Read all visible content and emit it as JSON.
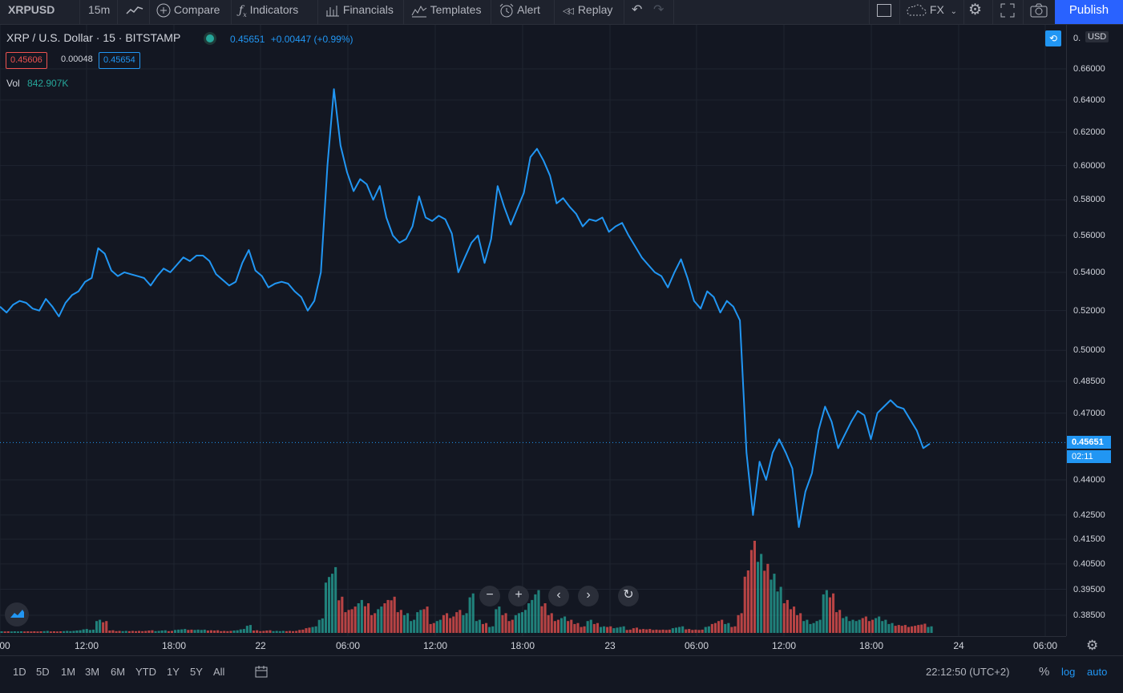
{
  "toolbar": {
    "symbol": "XRPUSD",
    "interval": "15m",
    "compare": "Compare",
    "indicators": "Indicators",
    "financials": "Financials",
    "templates": "Templates",
    "alert": "Alert",
    "replay": "Replay",
    "fx": "FX",
    "publish": "Publish"
  },
  "legend": {
    "title": "XRP / U.S. Dollar · 15 · BITSTAMP",
    "last": "0.45651",
    "change": "+0.00447 (+0.99%)",
    "bid": "0.45606",
    "spread": "0.00048",
    "ask": "0.45654",
    "vol_label": "Vol",
    "vol_value": "842.907K"
  },
  "price_axis": {
    "currency": "USD",
    "top_label": "0.",
    "labels": [
      "0.66000",
      "0.64000",
      "0.62000",
      "0.60000",
      "0.58000",
      "0.56000",
      "0.54000",
      "0.52000",
      "0.50000",
      "0.48500",
      "0.47000",
      "0.44000",
      "0.42500",
      "0.41500",
      "0.40500",
      "0.39500",
      "0.38500"
    ],
    "last_price": "0.45651",
    "countdown": "02:11"
  },
  "time_axis": {
    "labels": [
      "00",
      "12:00",
      "18:00",
      "22",
      "06:00",
      "12:00",
      "18:00",
      "23",
      "06:00",
      "12:00",
      "18:00",
      "24",
      "06:00"
    ]
  },
  "bottom": {
    "ranges": [
      "1D",
      "5D",
      "1M",
      "3M",
      "6M",
      "YTD",
      "1Y",
      "5Y",
      "All"
    ],
    "clock": "22:12:50 (UTC+2)",
    "percent": "%",
    "log": "log",
    "auto": "auto"
  },
  "colors": {
    "line": "#2196f3",
    "up": "#26a69a",
    "down": "#ef5350",
    "bg": "#131722"
  },
  "chart_data": {
    "type": "line",
    "series": [
      {
        "values": [
          0.522,
          0.519,
          0.523,
          0.525,
          0.524,
          0.521,
          0.52,
          0.526,
          0.522,
          0.517,
          0.524,
          0.528,
          0.53,
          0.535,
          0.537,
          0.553,
          0.55,
          0.541,
          0.538,
          0.54,
          0.539,
          0.538,
          0.537,
          0.533,
          0.538,
          0.542,
          0.54,
          0.544,
          0.548,
          0.546,
          0.549,
          0.549,
          0.546,
          0.539,
          0.536,
          0.533,
          0.535,
          0.545,
          0.552,
          0.541,
          0.538,
          0.532,
          0.534,
          0.535,
          0.534,
          0.53,
          0.527,
          0.52,
          0.525,
          0.54,
          0.6,
          0.647,
          0.612,
          0.596,
          0.585,
          0.592,
          0.589,
          0.58,
          0.588,
          0.57,
          0.56,
          0.556,
          0.558,
          0.565,
          0.582,
          0.57,
          0.568,
          0.571,
          0.569,
          0.561,
          0.54,
          0.548,
          0.556,
          0.56,
          0.545,
          0.558,
          0.588,
          0.576,
          0.566,
          0.575,
          0.584,
          0.605,
          0.61,
          0.603,
          0.594,
          0.578,
          0.581,
          0.576,
          0.572,
          0.565,
          0.569,
          0.568,
          0.57,
          0.562,
          0.565,
          0.567,
          0.56,
          0.554,
          0.548,
          0.544,
          0.54,
          0.538,
          0.532,
          0.54,
          0.547,
          0.537,
          0.525,
          0.521,
          0.53,
          0.527,
          0.519,
          0.525,
          0.522,
          0.515,
          0.452,
          0.425,
          0.448,
          0.44,
          0.452,
          0.458,
          0.452,
          0.445,
          0.42,
          0.435,
          0.443,
          0.462,
          0.473,
          0.466,
          0.454,
          0.46,
          0.466,
          0.471,
          0.469,
          0.458,
          0.47,
          0.473,
          0.476,
          0.473,
          0.472,
          0.467,
          0.462,
          0.454,
          0.456
        ]
      }
    ],
    "volume": [
      0.02,
      0.02,
      0.02,
      0.02,
      0.02,
      0.02,
      0.02,
      0.03,
      0.02,
      0.02,
      0.03,
      0.03,
      0.04,
      0.06,
      0.05,
      0.2,
      0.18,
      0.04,
      0.03,
      0.03,
      0.03,
      0.03,
      0.03,
      0.04,
      0.03,
      0.04,
      0.03,
      0.05,
      0.06,
      0.05,
      0.05,
      0.05,
      0.04,
      0.04,
      0.03,
      0.03,
      0.04,
      0.06,
      0.12,
      0.04,
      0.03,
      0.04,
      0.03,
      0.03,
      0.03,
      0.03,
      0.05,
      0.08,
      0.1,
      0.22,
      0.85,
      1.0,
      0.55,
      0.35,
      0.4,
      0.5,
      0.45,
      0.3,
      0.4,
      0.5,
      0.55,
      0.35,
      0.3,
      0.2,
      0.35,
      0.4,
      0.15,
      0.2,
      0.3,
      0.25,
      0.35,
      0.3,
      0.6,
      0.2,
      0.15,
      0.1,
      0.4,
      0.3,
      0.2,
      0.3,
      0.35,
      0.5,
      0.65,
      0.45,
      0.3,
      0.2,
      0.25,
      0.2,
      0.15,
      0.1,
      0.2,
      0.15,
      0.1,
      0.1,
      0.08,
      0.1,
      0.05,
      0.08,
      0.06,
      0.06,
      0.05,
      0.05,
      0.05,
      0.08,
      0.1,
      0.06,
      0.05,
      0.05,
      0.1,
      0.15,
      0.2,
      0.15,
      0.1,
      0.3,
      0.95,
      1.4,
      1.2,
      1.05,
      0.9,
      0.7,
      0.5,
      0.4,
      0.3,
      0.2,
      0.15,
      0.2,
      0.65,
      0.6,
      0.35,
      0.25,
      0.2,
      0.2,
      0.25,
      0.2,
      0.25,
      0.2,
      0.15,
      0.12,
      0.12,
      0.1,
      0.12,
      0.14,
      0.1
    ]
  }
}
